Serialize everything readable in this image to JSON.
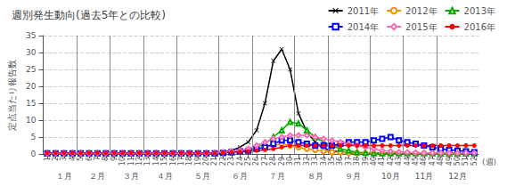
{
  "chart_data": {
    "type": "line",
    "title": "週別発生動向(過去5年との比較)",
    "ylabel": "定点当たり報告数",
    "xlabel": "(週)",
    "x": [
      1,
      2,
      3,
      4,
      5,
      6,
      7,
      8,
      9,
      10,
      11,
      12,
      13,
      14,
      15,
      16,
      17,
      18,
      19,
      20,
      21,
      22,
      23,
      24,
      25,
      26,
      27,
      28,
      29,
      30,
      31,
      32,
      33,
      34,
      35,
      36,
      37,
      38,
      39,
      40,
      41,
      42,
      43,
      44,
      45,
      46,
      47,
      48,
      49,
      50,
      51,
      52
    ],
    "xlim": [
      0.5,
      52.5
    ],
    "xticks": [
      1,
      2,
      3,
      4,
      5,
      6,
      7,
      8,
      9,
      10,
      11,
      12,
      13,
      14,
      15,
      16,
      17,
      18,
      19,
      20,
      21,
      22,
      23,
      24,
      25,
      26,
      27,
      28,
      29,
      30,
      31,
      32,
      33,
      34,
      35,
      36,
      37,
      38,
      39,
      40,
      41,
      42,
      43,
      44,
      45,
      46,
      47,
      48,
      49,
      50,
      51,
      52
    ],
    "ylim": [
      0,
      35
    ],
    "yticks": [
      0,
      5,
      10,
      15,
      20,
      25,
      30,
      35
    ],
    "grid": true,
    "legend": "top right",
    "series": [
      {
        "name": "2011年",
        "color": "#000000",
        "marker": "x",
        "values": [
          0.2,
          0.2,
          0.2,
          0.2,
          0.2,
          0.2,
          0.2,
          0.2,
          0.2,
          0.2,
          0.2,
          0.2,
          0.2,
          0.2,
          0.2,
          0.2,
          0.2,
          0.2,
          0.2,
          0.2,
          0.2,
          0.5,
          1.0,
          2.0,
          3.5,
          7.0,
          15.0,
          27.5,
          31.0,
          25.0,
          12.0,
          6.5,
          3.5,
          1.5,
          1.0,
          0.5,
          0.3,
          0.2,
          0.2,
          0.2,
          0.2,
          0.2,
          0.2,
          0.2,
          0.2,
          0.2,
          0.2,
          0.2,
          0.2,
          0.2,
          0.2,
          0.2
        ]
      },
      {
        "name": "2012年",
        "color": "#FF8C00",
        "marker": "circle-open",
        "values": [
          0.2,
          0.2,
          0.2,
          0.2,
          0.2,
          0.2,
          0.2,
          0.2,
          0.2,
          0.2,
          0.2,
          0.2,
          0.2,
          0.2,
          0.2,
          0.2,
          0.2,
          0.2,
          0.2,
          0.2,
          0.2,
          0.3,
          0.5,
          0.8,
          1.0,
          1.5,
          2.0,
          2.5,
          3.0,
          2.5,
          2.0,
          1.5,
          1.2,
          0.8,
          0.5,
          0.5,
          0.3,
          0.2,
          0.2,
          0.2,
          0.2,
          0.2,
          0.2,
          0.2,
          0.2,
          0.2,
          0.2,
          0.1,
          0.1,
          0.1,
          0.1,
          0.1
        ]
      },
      {
        "name": "2013年",
        "color": "#00AA00",
        "marker": "triangle-open",
        "values": [
          0.2,
          0.2,
          0.2,
          0.2,
          0.2,
          0.2,
          0.2,
          0.2,
          0.2,
          0.2,
          0.2,
          0.2,
          0.2,
          0.2,
          0.2,
          0.2,
          0.2,
          0.2,
          0.2,
          0.2,
          0.2,
          0.3,
          0.5,
          0.8,
          1.2,
          2.0,
          3.0,
          5.0,
          7.0,
          9.5,
          9.0,
          7.0,
          5.0,
          3.5,
          2.5,
          1.5,
          1.0,
          0.5,
          0.3,
          0.2,
          0.2,
          0.2,
          0.2,
          0.2,
          0.2,
          0.2,
          0.2,
          0.1,
          0.1,
          0.1,
          0.1,
          0.1
        ]
      },
      {
        "name": "2014年",
        "color": "#0000FF",
        "marker": "square-open",
        "values": [
          0.2,
          0.2,
          0.2,
          0.2,
          0.2,
          0.2,
          0.2,
          0.2,
          0.2,
          0.2,
          0.2,
          0.2,
          0.2,
          0.2,
          0.2,
          0.2,
          0.2,
          0.2,
          0.2,
          0.2,
          0.2,
          0.3,
          0.5,
          0.8,
          1.0,
          1.5,
          2.0,
          3.0,
          4.0,
          4.0,
          3.5,
          3.0,
          2.5,
          2.5,
          2.5,
          3.0,
          3.5,
          3.5,
          3.5,
          4.0,
          4.5,
          5.0,
          4.0,
          3.5,
          3.0,
          2.5,
          2.0,
          1.5,
          1.2,
          1.0,
          0.8,
          0.5
        ]
      },
      {
        "name": "2015年",
        "color": "#FF69B4",
        "marker": "diamond-open",
        "values": [
          0.2,
          0.2,
          0.2,
          0.2,
          0.2,
          0.2,
          0.2,
          0.2,
          0.2,
          0.2,
          0.2,
          0.2,
          0.2,
          0.2,
          0.2,
          0.2,
          0.2,
          0.2,
          0.2,
          0.2,
          0.3,
          0.5,
          0.8,
          1.0,
          1.5,
          2.5,
          3.5,
          4.5,
          5.0,
          5.5,
          5.5,
          5.5,
          5.0,
          4.5,
          4.0,
          3.5,
          3.0,
          2.5,
          2.0,
          1.5,
          1.0,
          0.8,
          0.6,
          0.5,
          0.4,
          0.3,
          0.3,
          0.3,
          0.3,
          0.3,
          0.3,
          0.3
        ]
      },
      {
        "name": "2016年",
        "color": "#FF0000",
        "marker": "circle",
        "values": [
          0.3,
          0.3,
          0.3,
          0.3,
          0.3,
          0.3,
          0.3,
          0.3,
          0.3,
          0.3,
          0.3,
          0.3,
          0.3,
          0.3,
          0.3,
          0.3,
          0.3,
          0.3,
          0.3,
          0.3,
          0.3,
          0.4,
          0.5,
          0.6,
          0.8,
          1.0,
          1.2,
          1.5,
          2.0,
          2.5,
          2.5,
          2.5,
          2.5,
          2.5,
          2.5,
          2.5,
          2.5,
          2.5,
          2.5,
          2.5,
          2.5,
          2.5,
          2.5,
          2.5,
          2.5,
          2.5,
          2.5,
          2.5,
          2.5,
          2.5,
          2.5,
          2.5
        ]
      }
    ],
    "annotations": [
      {
        "text": "１月",
        "x": 3
      },
      {
        "text": "２月",
        "x": 7
      },
      {
        "text": "３月",
        "x": 11
      },
      {
        "text": "４月",
        "x": 15
      },
      {
        "text": "５月",
        "x": 19.5
      },
      {
        "text": "６月",
        "x": 24
      },
      {
        "text": "７月",
        "x": 28.5
      },
      {
        "text": "８月",
        "x": 33
      },
      {
        "text": "９月",
        "x": 37.5
      },
      {
        "text": "10月",
        "x": 42
      },
      {
        "text": "11月",
        "x": 46
      },
      {
        "text": "12月",
        "x": 50
      }
    ],
    "vlines": [
      4.5,
      8.5,
      12.5,
      16.5,
      21.5,
      25.5,
      30.5,
      34.5,
      39.5,
      43.5,
      47.5
    ]
  }
}
